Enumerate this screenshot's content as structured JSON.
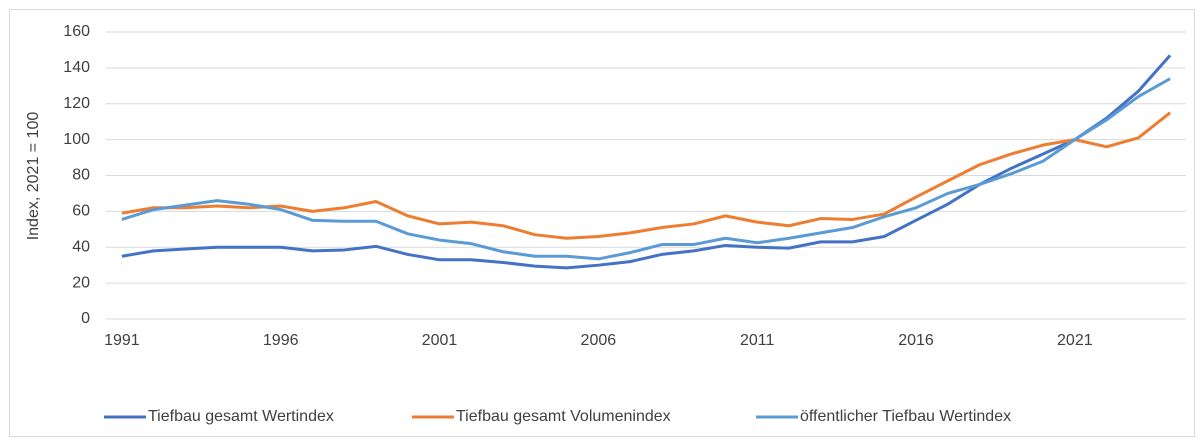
{
  "chart_data": {
    "type": "line",
    "y_label": "Index, 2021 = 100",
    "x": [
      1991,
      1992,
      1993,
      1994,
      1995,
      1996,
      1997,
      1998,
      1999,
      2000,
      2001,
      2002,
      2003,
      2004,
      2005,
      2006,
      2007,
      2008,
      2009,
      2010,
      2011,
      2012,
      2013,
      2014,
      2015,
      2016,
      2017,
      2018,
      2019,
      2020,
      2021,
      2022,
      2023,
      2024
    ],
    "xlim": [
      1990.5,
      2024.5
    ],
    "xticks": [
      1991,
      1996,
      2001,
      2006,
      2011,
      2016,
      2021
    ],
    "ylim": [
      0,
      160
    ],
    "yticks": [
      0,
      20,
      40,
      60,
      80,
      100,
      120,
      140,
      160
    ],
    "grid": true,
    "legend": "bottom",
    "series": [
      {
        "name": "Tiefbau gesamt Wertindex",
        "color": "#4472c4",
        "values": [
          35,
          38,
          39,
          40,
          40,
          40,
          38,
          38.5,
          40.5,
          36,
          33,
          33,
          31.5,
          29.5,
          28.5,
          30,
          32,
          36,
          38,
          41,
          40,
          39.5,
          43,
          43,
          46,
          55,
          64,
          75,
          84,
          92,
          100,
          112,
          127,
          147
        ]
      },
      {
        "name": "Tiefbau gesamt Volumenindex",
        "color": "#ed7d31",
        "values": [
          59,
          62,
          62,
          63,
          62,
          63,
          60,
          62,
          65.5,
          57.5,
          53,
          54,
          52,
          47,
          45,
          46,
          48,
          51,
          53,
          57.5,
          54,
          52,
          56,
          55.5,
          58.5,
          68,
          77,
          86,
          92,
          97,
          100,
          96,
          101,
          115
        ]
      },
      {
        "name": "öffentlicher Tiefbau Wertindex",
        "color": "#5b9bd5",
        "values": [
          55.5,
          61,
          63.5,
          66,
          64,
          61,
          55,
          54.5,
          54.5,
          47.5,
          44,
          42,
          37.5,
          35,
          35,
          33.5,
          37,
          41.5,
          41.5,
          45,
          42.5,
          45,
          48,
          51,
          57,
          62,
          70,
          75,
          81,
          88,
          100,
          111,
          124,
          134
        ]
      }
    ]
  }
}
